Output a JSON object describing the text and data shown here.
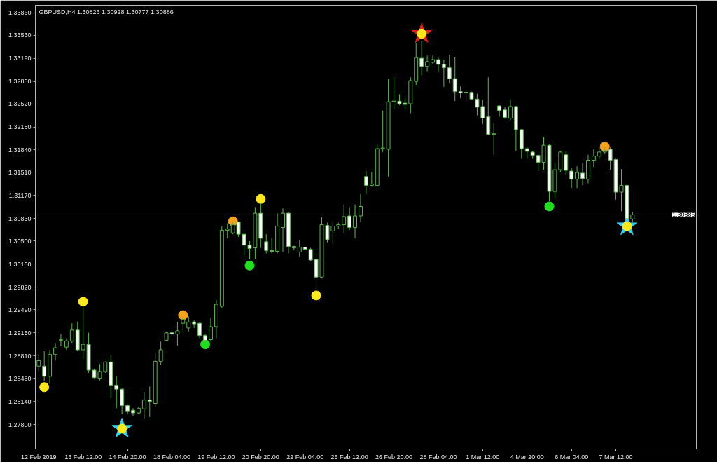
{
  "chart_data": {
    "type": "candlestick",
    "title": "GBPUSD,H4 1.30826 1.30928 1.30777 1.30886",
    "categories": [
      "12 Feb 2019",
      null,
      null,
      null,
      null,
      null,
      null,
      null,
      "13 Feb 12:00",
      null,
      null,
      null,
      null,
      null,
      null,
      null,
      "14 Feb 20:00",
      null,
      null,
      null,
      null,
      null,
      null,
      null,
      "18 Feb 04:00",
      null,
      null,
      null,
      null,
      null,
      null,
      null,
      "19 Feb 12:00",
      null,
      null,
      null,
      null,
      null,
      null,
      null,
      "20 Feb 20:00",
      null,
      null,
      null,
      null,
      null,
      null,
      null,
      "22 Feb 04:00",
      null,
      null,
      null,
      null,
      null,
      null,
      null,
      "25 Feb 12:00",
      null,
      null,
      null,
      null,
      null,
      null,
      null,
      "26 Feb 20:00",
      null,
      null,
      null,
      null,
      null,
      null,
      null,
      "28 Feb 04:00",
      null,
      null,
      null,
      null,
      null,
      null,
      null,
      "1 Mar 12:00",
      null,
      null,
      null,
      null,
      null,
      null,
      null,
      "4 Mar 20:00",
      null,
      null,
      null,
      null,
      null,
      null,
      null,
      "6 Mar 04:00",
      null,
      null,
      null,
      null,
      null,
      null,
      null,
      "7 Mar 12:00",
      null,
      null,
      null
    ],
    "ohlc": [
      [
        1.2866,
        1.2884,
        1.2859,
        1.2874
      ],
      [
        1.2866,
        1.2888,
        1.2844,
        1.2851
      ],
      [
        1.2851,
        1.289,
        1.284,
        1.2883
      ],
      [
        1.2883,
        1.29,
        1.2874,
        1.2893
      ],
      [
        1.2904,
        1.2913,
        1.2895,
        1.2905
      ],
      [
        1.2894,
        1.2907,
        1.289,
        1.2903
      ],
      [
        1.2903,
        1.2929,
        1.29,
        1.2919
      ],
      [
        1.2919,
        1.2931,
        1.2888,
        1.289
      ],
      [
        1.289,
        1.2954,
        1.2877,
        1.2898
      ],
      [
        1.2898,
        1.2915,
        1.2856,
        1.286
      ],
      [
        1.286,
        1.2862,
        1.2848,
        1.2849
      ],
      [
        1.2848,
        1.2869,
        1.2845,
        1.2858
      ],
      [
        1.2858,
        1.2873,
        1.2856,
        1.2872
      ],
      [
        1.2872,
        1.2882,
        1.2819,
        1.2838
      ],
      [
        1.2838,
        1.2851,
        1.2804,
        1.2832
      ],
      [
        1.2832,
        1.2833,
        1.2795,
        1.2808
      ],
      [
        1.2808,
        1.281,
        1.2795,
        1.28
      ],
      [
        1.2801,
        1.2804,
        1.2793,
        1.2797
      ],
      [
        1.2797,
        1.2806,
        1.2795,
        1.2804
      ],
      [
        1.2803,
        1.2828,
        1.2789,
        1.2816
      ],
      [
        1.2816,
        1.2836,
        1.2791,
        1.2814
      ],
      [
        1.2811,
        1.2885,
        1.2806,
        1.2873
      ],
      [
        1.2873,
        1.2902,
        1.2868,
        1.289
      ],
      [
        1.2904,
        1.2917,
        1.2903,
        1.2915
      ],
      [
        1.2915,
        1.2926,
        1.2911,
        1.2913
      ],
      [
        1.2913,
        1.2931,
        1.2896,
        1.2918
      ],
      [
        1.2929,
        1.2937,
        1.2915,
        1.2935
      ],
      [
        1.2922,
        1.2939,
        1.2917,
        1.2931
      ],
      [
        1.2931,
        1.2933,
        1.2922,
        1.2928
      ],
      [
        1.2929,
        1.2931,
        1.2907,
        1.2911
      ],
      [
        1.2911,
        1.2913,
        1.29,
        1.2904
      ],
      [
        1.2905,
        1.2937,
        1.2903,
        1.2924
      ],
      [
        1.2924,
        1.2963,
        1.2907,
        1.2957
      ],
      [
        1.2954,
        1.3072,
        1.2951,
        1.3066
      ],
      [
        1.3066,
        1.3076,
        1.3054,
        1.3068
      ],
      [
        1.3062,
        1.3078,
        1.306,
        1.3074
      ],
      [
        1.3078,
        1.3079,
        1.3056,
        1.306
      ],
      [
        1.306,
        1.3062,
        1.3029,
        1.3044
      ],
      [
        1.3044,
        1.305,
        1.3023,
        1.3039
      ],
      [
        1.304,
        1.31,
        1.3024,
        1.3091
      ],
      [
        1.3091,
        1.3106,
        1.304,
        1.3054
      ],
      [
        1.3049,
        1.306,
        1.3032,
        1.3036
      ],
      [
        1.3036,
        1.3054,
        1.3032,
        1.3035
      ],
      [
        1.3035,
        1.3091,
        1.3032,
        1.3072
      ],
      [
        1.307,
        1.3098,
        1.3034,
        1.3091
      ],
      [
        1.3091,
        1.3093,
        1.3032,
        1.3042
      ],
      [
        1.3042,
        1.3043,
        1.3037,
        1.304
      ],
      [
        1.3034,
        1.3052,
        1.3027,
        1.3041
      ],
      [
        1.3041,
        1.3042,
        1.3036,
        1.3038
      ],
      [
        1.3038,
        1.304,
        1.302,
        1.3022
      ],
      [
        1.3023,
        1.3032,
        1.298,
        1.2997
      ],
      [
        1.2997,
        1.3085,
        1.2995,
        1.3074
      ],
      [
        1.3073,
        1.3077,
        1.3048,
        1.3052
      ],
      [
        1.3065,
        1.3078,
        1.3048,
        1.3072
      ],
      [
        1.3072,
        1.3077,
        1.3068,
        1.3074
      ],
      [
        1.3074,
        1.3104,
        1.3062,
        1.3086
      ],
      [
        1.3087,
        1.31,
        1.3066,
        1.307
      ],
      [
        1.307,
        1.3104,
        1.3054,
        1.3087
      ],
      [
        1.3087,
        1.3119,
        1.3078,
        1.3101
      ],
      [
        1.3145,
        1.3153,
        1.3119,
        1.3132
      ],
      [
        1.3132,
        1.3151,
        1.313,
        1.3134
      ],
      [
        1.3132,
        1.3192,
        1.313,
        1.3186
      ],
      [
        1.3186,
        1.3242,
        1.3181,
        1.3187
      ],
      [
        1.3185,
        1.3289,
        1.3145,
        1.3255
      ],
      [
        1.3255,
        1.3292,
        1.3244,
        1.3256
      ],
      [
        1.3256,
        1.3266,
        1.325,
        1.3252
      ],
      [
        1.3253,
        1.326,
        1.3244,
        1.3251
      ],
      [
        1.3252,
        1.3291,
        1.3238,
        1.3286
      ],
      [
        1.3285,
        1.3341,
        1.328,
        1.332
      ],
      [
        1.3319,
        1.3345,
        1.3294,
        1.3307
      ],
      [
        1.3307,
        1.3323,
        1.33,
        1.3314
      ],
      [
        1.3313,
        1.3323,
        1.331,
        1.3317
      ],
      [
        1.3317,
        1.332,
        1.33,
        1.331
      ],
      [
        1.331,
        1.3317,
        1.3277,
        1.3305
      ],
      [
        1.3305,
        1.3324,
        1.3282,
        1.3289
      ],
      [
        1.3289,
        1.3321,
        1.3256,
        1.327
      ],
      [
        1.327,
        1.3278,
        1.326,
        1.3268
      ],
      [
        1.3268,
        1.3271,
        1.3256,
        1.3269
      ],
      [
        1.3269,
        1.327,
        1.3258,
        1.3259
      ],
      [
        1.3259,
        1.3267,
        1.3235,
        1.3247
      ],
      [
        1.3248,
        1.3258,
        1.3222,
        1.3231
      ],
      [
        1.3233,
        1.3291,
        1.3206,
        1.3207
      ],
      [
        1.3207,
        1.3224,
        1.3177,
        1.3208
      ],
      [
        1.3249,
        1.325,
        1.3233,
        1.3242
      ],
      [
        1.3243,
        1.3247,
        1.323,
        1.3232
      ],
      [
        1.3231,
        1.3258,
        1.3228,
        1.3248
      ],
      [
        1.3248,
        1.3249,
        1.3183,
        1.3214
      ],
      [
        1.3214,
        1.3215,
        1.3171,
        1.3186
      ],
      [
        1.3186,
        1.3189,
        1.3171,
        1.3182
      ],
      [
        1.3181,
        1.3183,
        1.3171,
        1.3176
      ],
      [
        1.3176,
        1.3179,
        1.3153,
        1.3166
      ],
      [
        1.3166,
        1.3203,
        1.3155,
        1.3191
      ],
      [
        1.3191,
        1.3192,
        1.3109,
        1.3123
      ],
      [
        1.3123,
        1.3165,
        1.3113,
        1.3155
      ],
      [
        1.3155,
        1.3183,
        1.3151,
        1.3181
      ],
      [
        1.3177,
        1.3182,
        1.3147,
        1.3154
      ],
      [
        1.3153,
        1.3157,
        1.3128,
        1.3141
      ],
      [
        1.3141,
        1.316,
        1.3128,
        1.3151
      ],
      [
        1.315,
        1.3165,
        1.3132,
        1.3142
      ],
      [
        1.3141,
        1.3177,
        1.3135,
        1.3169
      ],
      [
        1.3169,
        1.3185,
        1.3159,
        1.3175
      ],
      [
        1.3175,
        1.3188,
        1.3171,
        1.3181
      ],
      [
        1.3181,
        1.3188,
        1.3179,
        1.3183
      ],
      [
        1.3185,
        1.3188,
        1.3155,
        1.3169
      ],
      [
        1.317,
        1.3171,
        1.3111,
        1.3122
      ],
      [
        1.3122,
        1.3156,
        1.3094,
        1.3132
      ],
      [
        1.3132,
        1.3134,
        1.308,
        1.3083
      ],
      [
        1.30826,
        1.30928,
        1.30777,
        1.30886
      ]
    ],
    "color": "#5cb84c",
    "colors": [
      "#000000",
      "#ffffff",
      "#000000",
      "#000000",
      "#000000",
      "#000000",
      "#000000",
      "#ffffff",
      "#000000",
      "#ffffff",
      "#ffffff",
      "#000000",
      "#000000",
      "#ffffff",
      "#ffffff",
      "#ffffff",
      "#ffffff",
      "#ffffff",
      "#000000",
      "#000000",
      "#ffffff",
      "#000000",
      "#000000",
      "#000000",
      "#ffffff",
      "#000000",
      "#000000",
      "#000000",
      "#ffffff",
      "#ffffff",
      "#ffffff",
      "#000000",
      "#000000",
      "#000000",
      "#000000",
      "#000000",
      "#ffffff",
      "#ffffff",
      "#ffffff",
      "#000000",
      "#ffffff",
      "#ffffff",
      "#ffffff",
      "#000000",
      "#000000",
      "#ffffff",
      "#ffffff",
      "#000000",
      "#ffffff",
      "#ffffff",
      "#ffffff",
      "#000000",
      "#ffffff",
      "#000000",
      "#000000",
      "#000000",
      "#ffffff",
      "#000000",
      "#000000",
      "#ffffff",
      "#000000",
      "#000000",
      "#000000",
      "#000000",
      "#000000",
      "#ffffff",
      "#ffffff",
      "#000000",
      "#000000",
      "#ffffff",
      "#000000",
      "#000000",
      "#ffffff",
      "#ffffff",
      "#ffffff",
      "#ffffff",
      "#ffffff",
      "#000000",
      "#ffffff",
      "#ffffff",
      "#ffffff",
      "#ffffff",
      "#000000",
      "#ffffff",
      "#ffffff",
      "#000000",
      "#ffffff",
      "#ffffff",
      "#ffffff",
      "#ffffff",
      "#ffffff",
      "#000000",
      "#ffffff",
      "#000000",
      "#000000",
      "#ffffff",
      "#ffffff",
      "#000000",
      "#ffffff",
      "#000000",
      "#000000",
      "#000000",
      "#000000",
      "#ffffff",
      "#ffffff",
      "#000000",
      "#ffffff",
      "#000000"
    ],
    "series": [
      {
        "type": "scatter",
        "marker": "star",
        "color": "#2fd4f4",
        "values": [
          null,
          null,
          null,
          null,
          null,
          null,
          null,
          null,
          null,
          null,
          null,
          null,
          null,
          null,
          null,
          1.2774,
          null,
          null,
          null,
          null,
          null,
          null,
          null,
          null,
          null,
          null,
          null,
          null,
          null,
          null,
          null,
          null,
          null,
          null,
          null,
          null,
          null,
          null,
          null,
          null,
          null,
          null,
          null,
          null,
          null,
          null,
          null,
          null,
          null,
          null,
          null,
          null,
          null,
          null,
          null,
          null,
          null,
          null,
          null,
          null,
          null,
          null,
          null,
          null,
          null,
          null,
          null,
          null,
          null,
          null,
          null,
          null,
          null,
          null,
          null,
          null,
          null,
          null,
          null,
          null,
          null,
          null,
          null,
          null,
          null,
          null,
          null,
          null,
          null,
          null,
          null,
          null,
          null,
          null,
          null,
          null,
          null,
          null,
          null,
          null,
          null,
          null,
          null,
          null,
          null,
          null,
          1.3072,
          null
        ]
      },
      {
        "type": "scatter",
        "marker": "star",
        "color": "#e3231b",
        "values": [
          null,
          null,
          null,
          null,
          null,
          null,
          null,
          null,
          null,
          null,
          null,
          null,
          null,
          null,
          null,
          null,
          null,
          null,
          null,
          null,
          null,
          null,
          null,
          null,
          null,
          null,
          null,
          null,
          null,
          null,
          null,
          null,
          null,
          null,
          null,
          null,
          null,
          null,
          null,
          null,
          null,
          null,
          null,
          null,
          null,
          null,
          null,
          null,
          null,
          null,
          null,
          null,
          null,
          null,
          null,
          null,
          null,
          null,
          null,
          null,
          null,
          null,
          null,
          null,
          null,
          null,
          null,
          null,
          null,
          1.3355,
          null,
          null,
          null,
          null,
          null,
          null,
          null,
          null,
          null,
          null,
          null,
          null,
          null,
          null,
          null,
          null,
          null,
          null,
          null,
          null,
          null,
          null,
          null,
          null,
          null,
          null,
          null,
          null,
          null,
          null,
          null,
          null,
          null,
          null,
          null,
          null,
          null,
          null
        ]
      },
      {
        "type": "scatter",
        "marker": "circle",
        "color": "#ffe81c",
        "values": [
          null,
          1.2835,
          null,
          null,
          null,
          null,
          null,
          null,
          1.2961,
          null,
          null,
          null,
          null,
          null,
          null,
          1.2774,
          null,
          null,
          null,
          null,
          null,
          null,
          null,
          null,
          null,
          null,
          null,
          null,
          null,
          null,
          null,
          null,
          null,
          null,
          null,
          null,
          null,
          null,
          null,
          null,
          1.3112,
          null,
          null,
          null,
          null,
          null,
          null,
          null,
          null,
          null,
          1.297,
          null,
          null,
          null,
          null,
          null,
          null,
          null,
          null,
          null,
          null,
          null,
          null,
          null,
          null,
          null,
          null,
          null,
          null,
          1.3355,
          null,
          null,
          null,
          null,
          null,
          null,
          null,
          null,
          null,
          null,
          null,
          null,
          null,
          null,
          null,
          null,
          null,
          null,
          null,
          null,
          null,
          null,
          null,
          null,
          null,
          null,
          null,
          null,
          null,
          null,
          null,
          null,
          null,
          null,
          null,
          null,
          1.3072,
          null
        ]
      },
      {
        "type": "scatter",
        "marker": "circle",
        "color": "#f7a21b",
        "values": [
          null,
          null,
          null,
          null,
          null,
          null,
          null,
          null,
          null,
          null,
          null,
          null,
          null,
          null,
          null,
          null,
          null,
          null,
          null,
          null,
          null,
          null,
          null,
          null,
          null,
          null,
          1.2941,
          null,
          null,
          null,
          null,
          null,
          null,
          null,
          null,
          1.3079,
          null,
          null,
          null,
          null,
          null,
          null,
          null,
          null,
          null,
          null,
          null,
          null,
          null,
          null,
          null,
          null,
          null,
          null,
          null,
          null,
          null,
          null,
          null,
          null,
          null,
          null,
          null,
          null,
          null,
          null,
          null,
          null,
          null,
          null,
          null,
          null,
          null,
          null,
          null,
          null,
          null,
          null,
          null,
          null,
          null,
          null,
          null,
          null,
          null,
          null,
          null,
          null,
          null,
          null,
          null,
          null,
          null,
          null,
          null,
          null,
          null,
          null,
          null,
          null,
          null,
          null,
          1.3189,
          null,
          null,
          null,
          null,
          null
        ]
      },
      {
        "type": "scatter",
        "marker": "circle",
        "color": "#1fe01f",
        "values": [
          null,
          null,
          null,
          null,
          null,
          null,
          null,
          null,
          null,
          null,
          null,
          null,
          null,
          null,
          null,
          null,
          null,
          null,
          null,
          null,
          null,
          null,
          null,
          null,
          null,
          null,
          null,
          null,
          null,
          null,
          1.2898,
          null,
          null,
          null,
          null,
          null,
          null,
          null,
          1.3014,
          null,
          null,
          null,
          null,
          null,
          null,
          null,
          null,
          null,
          null,
          null,
          null,
          null,
          null,
          null,
          null,
          null,
          null,
          null,
          null,
          null,
          null,
          null,
          null,
          null,
          null,
          null,
          null,
          null,
          null,
          null,
          null,
          null,
          null,
          null,
          null,
          null,
          null,
          null,
          null,
          null,
          null,
          null,
          null,
          null,
          null,
          null,
          null,
          null,
          null,
          null,
          null,
          null,
          1.3101,
          null,
          null,
          null,
          null,
          null,
          null,
          null,
          null,
          null,
          null,
          null,
          null,
          null,
          null,
          null
        ]
      }
    ],
    "ylim": [
      1.2744,
      1.3397
    ],
    "yticks": [
      {
        "value": 1.278,
        "label": "1.27800"
      },
      {
        "value": 1.2814,
        "label": "1.28140"
      },
      {
        "value": 1.2848,
        "label": "1.28480"
      },
      {
        "value": 1.2881,
        "label": "1.28810"
      },
      {
        "value": 1.2915,
        "label": "1.29150"
      },
      {
        "value": 1.2949,
        "label": "1.29490"
      },
      {
        "value": 1.2982,
        "label": "1.29820"
      },
      {
        "value": 1.3016,
        "label": "1.30160"
      },
      {
        "value": 1.305,
        "label": "1.30500"
      },
      {
        "value": 1.3083,
        "label": "1.30830"
      },
      {
        "value": 1.3117,
        "label": "1.31170"
      },
      {
        "value": 1.3151,
        "label": "1.31510"
      },
      {
        "value": 1.3184,
        "label": "1.31840"
      },
      {
        "value": 1.3218,
        "label": "1.32180"
      },
      {
        "value": 1.3252,
        "label": "1.32520"
      },
      {
        "value": 1.3285,
        "label": "1.32850"
      },
      {
        "value": 1.3319,
        "label": "1.33190"
      },
      {
        "value": 1.3353,
        "label": "1.33530"
      },
      {
        "value": 1.3386,
        "label": "1.33860"
      }
    ],
    "ref_lines": [
      {
        "axis": "y",
        "value": 1.30886,
        "label": "1.30886",
        "color": "#a0a0a0"
      }
    ]
  }
}
